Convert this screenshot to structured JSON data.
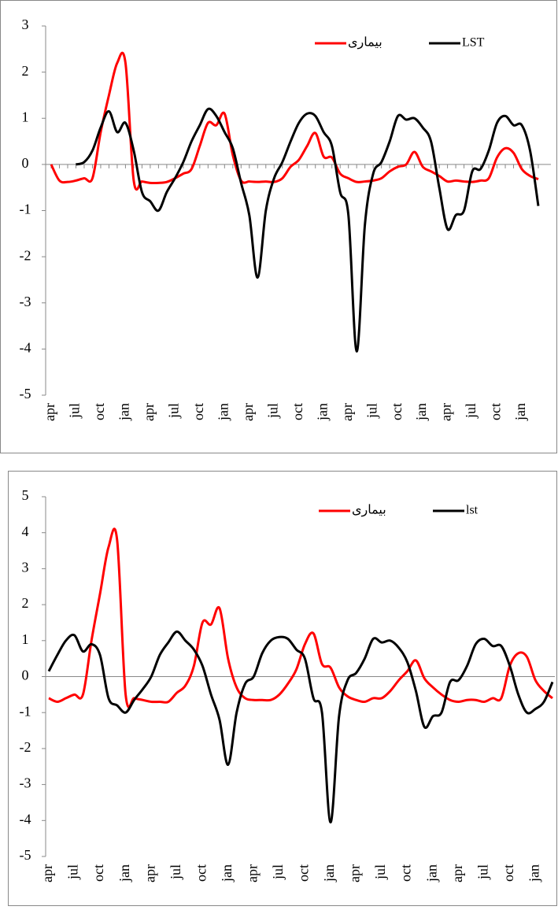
{
  "chart_data": [
    {
      "type": "line",
      "categories": [
        "apr",
        null,
        null,
        "jul",
        null,
        null,
        "oct",
        null,
        null,
        "jan",
        null,
        null,
        "apr",
        null,
        null,
        "jul",
        null,
        null,
        "oct",
        null,
        null,
        "jan",
        null,
        null,
        "apr",
        null,
        null,
        "jul",
        null,
        null,
        "oct",
        null,
        null,
        "jan",
        null,
        null,
        "apr",
        null,
        null,
        "jul",
        null,
        null,
        "oct",
        null,
        null,
        "jan",
        null,
        null,
        "apr",
        null,
        null,
        "jul",
        null,
        null,
        "oct",
        null,
        null,
        "jan",
        null,
        null
      ],
      "series": [
        {
          "name": "بیماری",
          "color": "#ff0000",
          "values": [
            0,
            -0.35,
            -0.38,
            -0.35,
            -0.3,
            -0.3,
            0.7,
            1.5,
            2.2,
            2.2,
            -0.35,
            -0.37,
            -0.4,
            -0.4,
            -0.38,
            -0.3,
            -0.2,
            -0.1,
            0.4,
            0.9,
            0.85,
            1.1,
            0.2,
            -0.35,
            -0.37,
            -0.38,
            -0.37,
            -0.38,
            -0.3,
            -0.05,
            0.1,
            0.4,
            0.68,
            0.17,
            0.15,
            -0.2,
            -0.3,
            -0.38,
            -0.37,
            -0.35,
            -0.3,
            -0.15,
            -0.05,
            0,
            0.27,
            -0.05,
            -0.15,
            -0.25,
            -0.37,
            -0.35,
            -0.37,
            -0.38,
            -0.35,
            -0.3,
            0.15,
            0.35,
            0.25,
            -0.1,
            -0.25,
            -0.32
          ]
        },
        {
          "name": "LST",
          "color": "#000000",
          "values": [
            null,
            null,
            null,
            0,
            0.05,
            0.3,
            0.8,
            1.15,
            0.7,
            0.9,
            0.3,
            -0.6,
            -0.8,
            -1.0,
            -0.6,
            -0.3,
            0.05,
            0.5,
            0.85,
            1.2,
            1.05,
            0.7,
            0.35,
            -0.4,
            -1.1,
            -2.45,
            -1.0,
            -0.3,
            0.05,
            0.5,
            0.9,
            1.1,
            1.05,
            0.7,
            0.4,
            -0.6,
            -1.1,
            -4.05,
            -1.3,
            -0.2,
            0.05,
            0.5,
            1.05,
            0.97,
            1.0,
            0.8,
            0.5,
            -0.5,
            -1.4,
            -1.1,
            -1.0,
            -0.15,
            -0.1,
            0.3,
            0.9,
            1.05,
            0.85,
            0.85,
            0.3,
            -0.9
          ]
        }
      ],
      "ylim": [
        -5,
        3
      ],
      "yticks": [
        -5,
        -4,
        -3,
        -2,
        -1,
        0,
        1,
        2,
        3
      ],
      "legend": "top-right",
      "category_ticks": true,
      "grid": false
    },
    {
      "type": "line",
      "categories": [
        "apr",
        null,
        null,
        "jul",
        null,
        null,
        "oct",
        null,
        null,
        "jan",
        null,
        null,
        "apr",
        null,
        null,
        "jul",
        null,
        null,
        "oct",
        null,
        null,
        "jan",
        null,
        null,
        "apr",
        null,
        null,
        "jul",
        null,
        null,
        "oct",
        null,
        null,
        "jan",
        null,
        null,
        "apr",
        null,
        null,
        "jul",
        null,
        null,
        "oct",
        null,
        null,
        "jan",
        null,
        null,
        "apr",
        null,
        null,
        "jul",
        null,
        null,
        "oct",
        null,
        null,
        "jan",
        null,
        null
      ],
      "series": [
        {
          "name": "بیماری",
          "color": "#ff0000",
          "values": [
            -0.6,
            -0.7,
            -0.6,
            -0.5,
            -0.5,
            1.0,
            2.3,
            3.6,
            3.8,
            -0.5,
            -0.6,
            -0.65,
            -0.7,
            -0.7,
            -0.7,
            -0.45,
            -0.25,
            0.3,
            1.5,
            1.45,
            1.9,
            0.5,
            -0.3,
            -0.6,
            -0.65,
            -0.65,
            -0.65,
            -0.5,
            -0.2,
            0.2,
            0.9,
            1.2,
            0.35,
            0.25,
            -0.3,
            -0.55,
            -0.65,
            -0.7,
            -0.6,
            -0.6,
            -0.4,
            -0.1,
            0.15,
            0.45,
            -0.05,
            -0.3,
            -0.5,
            -0.65,
            -0.7,
            -0.65,
            -0.65,
            -0.7,
            -0.6,
            -0.6,
            0.3,
            0.65,
            0.55,
            -0.1,
            -0.4,
            -0.6
          ]
        },
        {
          "name": "lst",
          "color": "#000000",
          "values": [
            0.15,
            0.6,
            1.0,
            1.15,
            0.7,
            0.9,
            0.6,
            -0.6,
            -0.8,
            -1.0,
            -0.65,
            -0.35,
            0,
            0.6,
            0.95,
            1.25,
            1.0,
            0.75,
            0.3,
            -0.5,
            -1.2,
            -2.45,
            -1.0,
            -0.2,
            0,
            0.65,
            1.0,
            1.1,
            1.05,
            0.75,
            0.5,
            -0.6,
            -1.0,
            -4.05,
            -1.1,
            -0.1,
            0.1,
            0.5,
            1.05,
            0.95,
            1.0,
            0.8,
            0.4,
            -0.4,
            -1.4,
            -1.1,
            -1.0,
            -0.15,
            -0.1,
            0.3,
            0.9,
            1.05,
            0.85,
            0.85,
            0.3,
            -0.5,
            -1.0,
            -0.9,
            -0.7,
            -0.15
          ]
        }
      ],
      "ylim": [
        -5,
        5
      ],
      "yticks": [
        -5,
        -4,
        -3,
        -2,
        -1,
        0,
        1,
        2,
        3,
        4,
        5
      ],
      "legend": "top-right",
      "category_ticks": false,
      "grid": false
    }
  ]
}
